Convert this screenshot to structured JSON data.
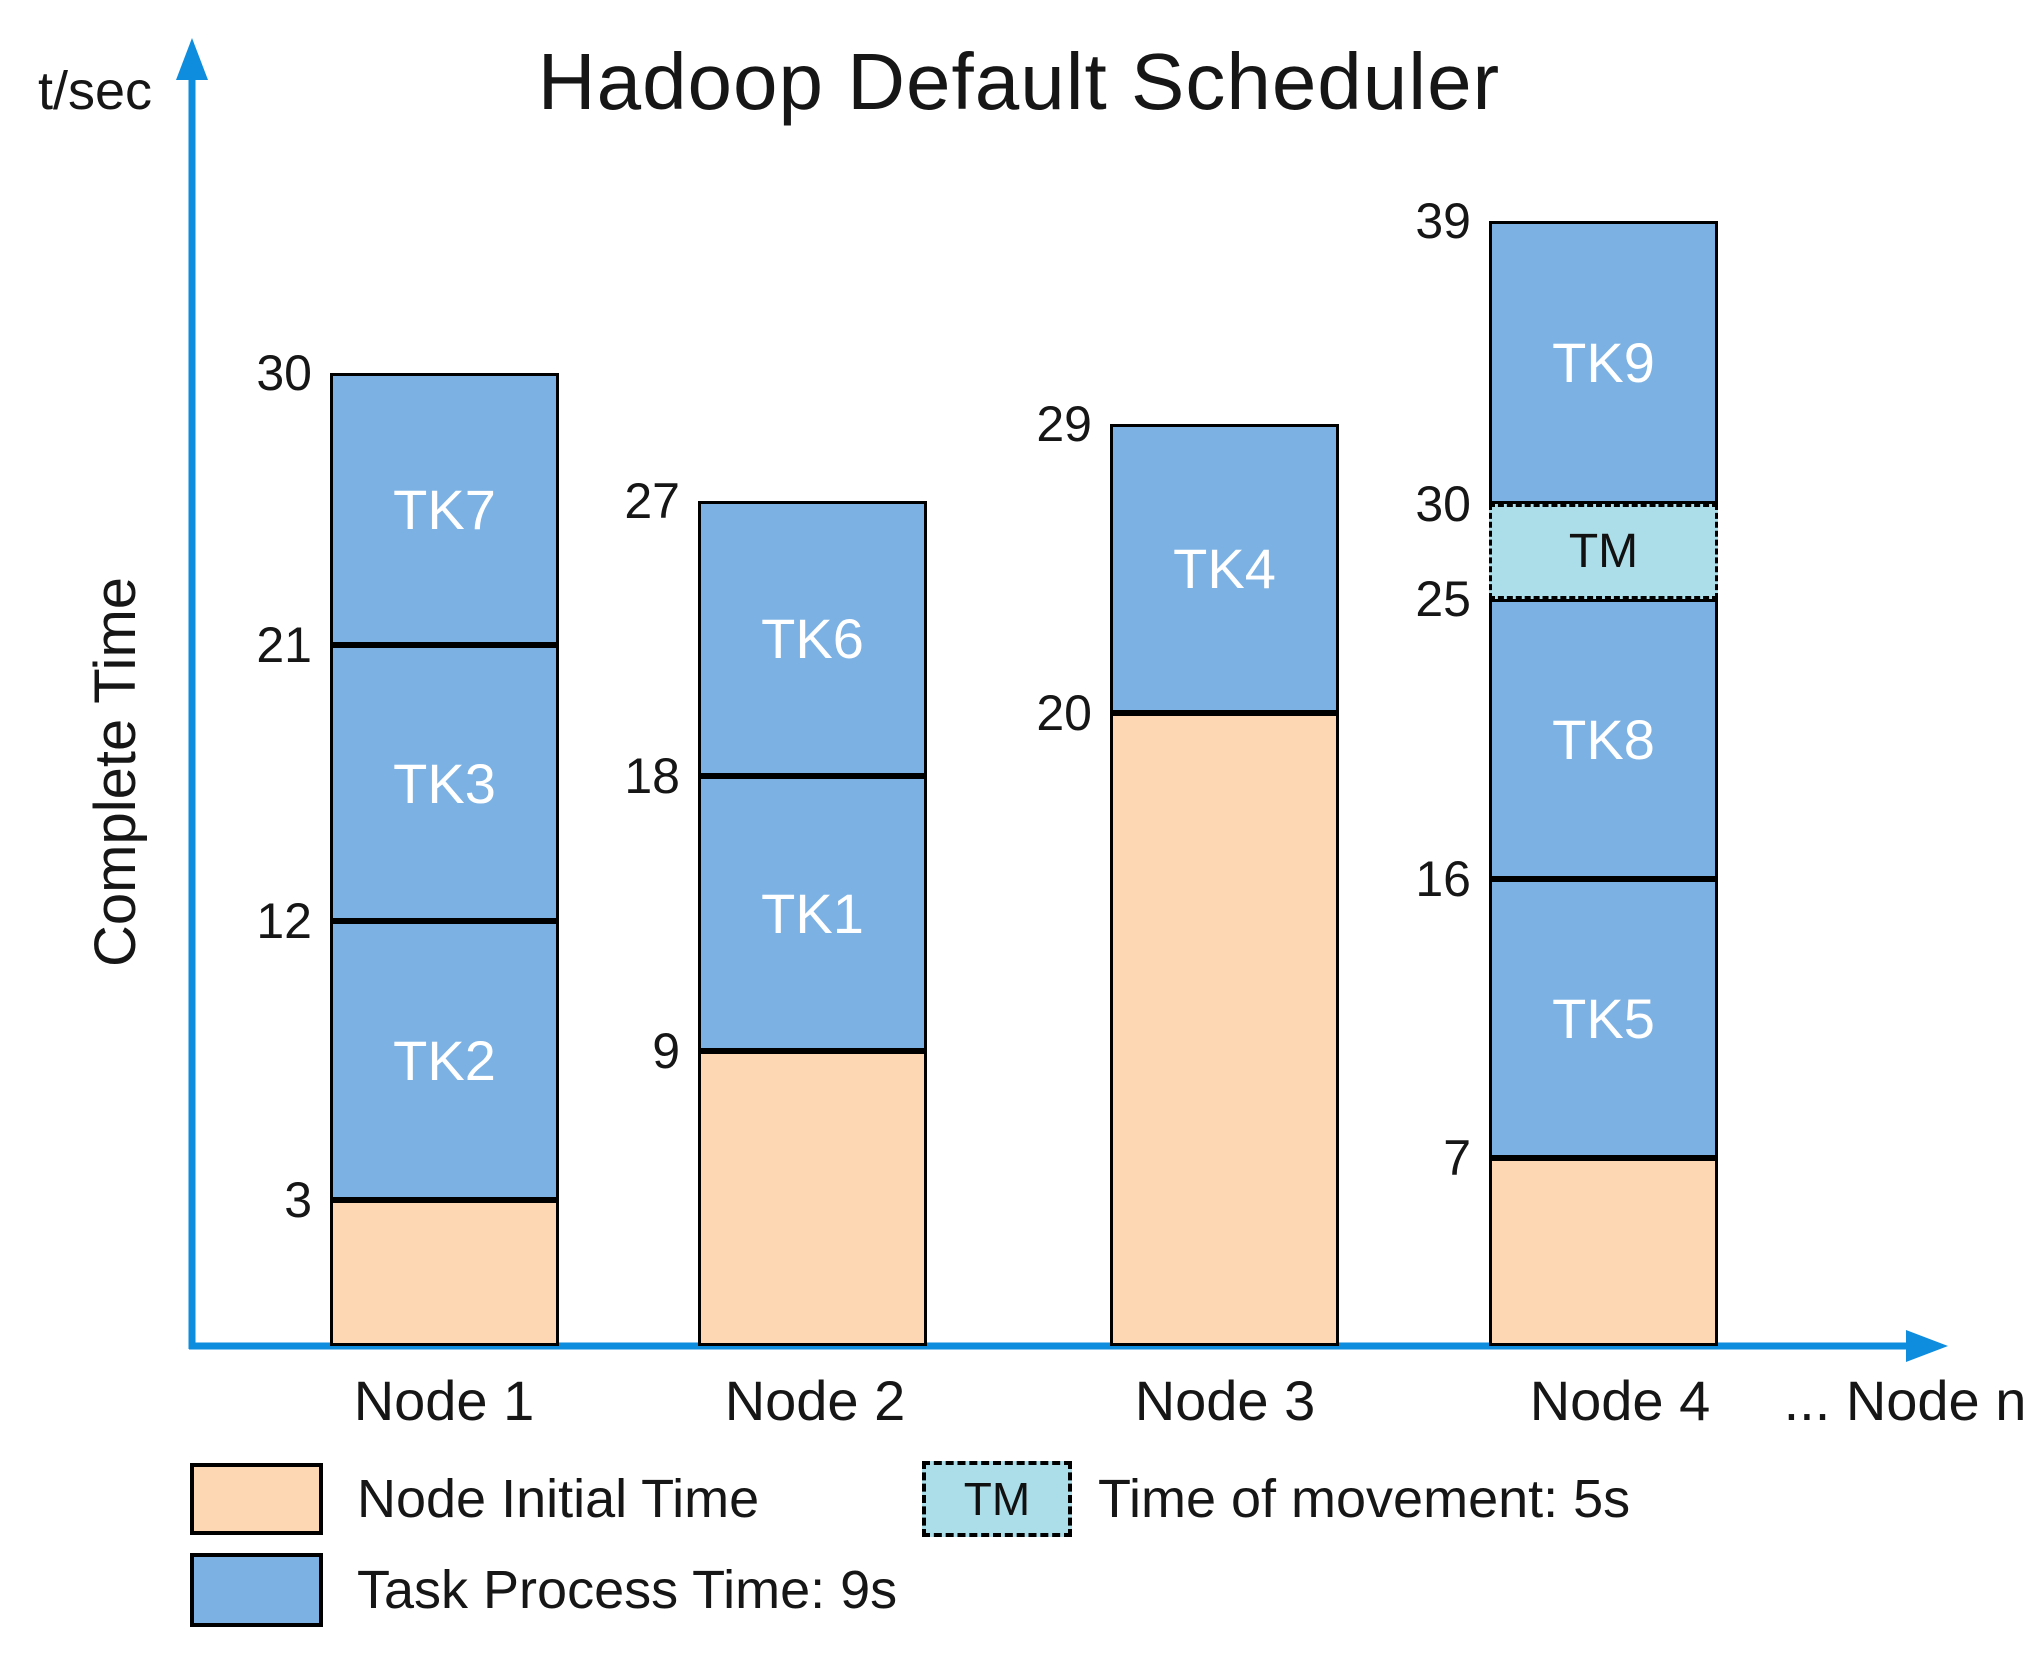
{
  "chart_data": {
    "type": "bar",
    "title": "Hadoop Default Scheduler",
    "y_axis": {
      "unit_label": "t/sec",
      "axis_title": "Complete Time"
    },
    "x_axis": {
      "overflow_label": "... Node n"
    },
    "task_process_time_s": 9,
    "time_of_movement_s": 5,
    "ylim": [
      0,
      39
    ],
    "nodes": [
      {
        "name": "Node 1",
        "initial_time": {
          "start": 0,
          "end": 3
        },
        "segments": [
          {
            "label": "TK2",
            "start": 3,
            "end": 12,
            "type": "task"
          },
          {
            "label": "TK3",
            "start": 12,
            "end": 21,
            "type": "task"
          },
          {
            "label": "TK7",
            "start": 21,
            "end": 30,
            "type": "task"
          }
        ],
        "complete_time": 30
      },
      {
        "name": "Node 2",
        "initial_time": {
          "start": 0,
          "end": 9
        },
        "segments": [
          {
            "label": "TK1",
            "start": 9,
            "end": 18,
            "type": "task"
          },
          {
            "label": "TK6",
            "start": 18,
            "end": 27,
            "type": "task"
          }
        ],
        "complete_time": 27
      },
      {
        "name": "Node 3",
        "initial_time": {
          "start": 0,
          "end": 20
        },
        "segments": [
          {
            "label": "TK4",
            "start": 20,
            "end": 29,
            "type": "task"
          }
        ],
        "complete_time": 29
      },
      {
        "name": "Node 4",
        "initial_time": {
          "start": 0,
          "end": 7
        },
        "segments": [
          {
            "label": "TK5",
            "start": 7,
            "end": 16,
            "type": "task"
          },
          {
            "label": "TK8",
            "start": 16,
            "end": 25,
            "type": "task"
          },
          {
            "label": "TM",
            "start": 25,
            "end": 30,
            "type": "movement"
          },
          {
            "label": "TK9",
            "start": 30,
            "end": 39,
            "type": "task"
          }
        ],
        "complete_time": 39
      }
    ],
    "legend": [
      {
        "swatch": "initial",
        "label": "Node Initial Time"
      },
      {
        "swatch": "movement",
        "swatch_label": "TM",
        "label": "Time of movement: 5s"
      },
      {
        "swatch": "task",
        "label": "Task Process Time: 9s"
      }
    ],
    "colors": {
      "task": "#7CB1E4",
      "initial": "#FDD6B4",
      "movement": "#ABDEE9",
      "axis": "#0E8CDD"
    }
  }
}
